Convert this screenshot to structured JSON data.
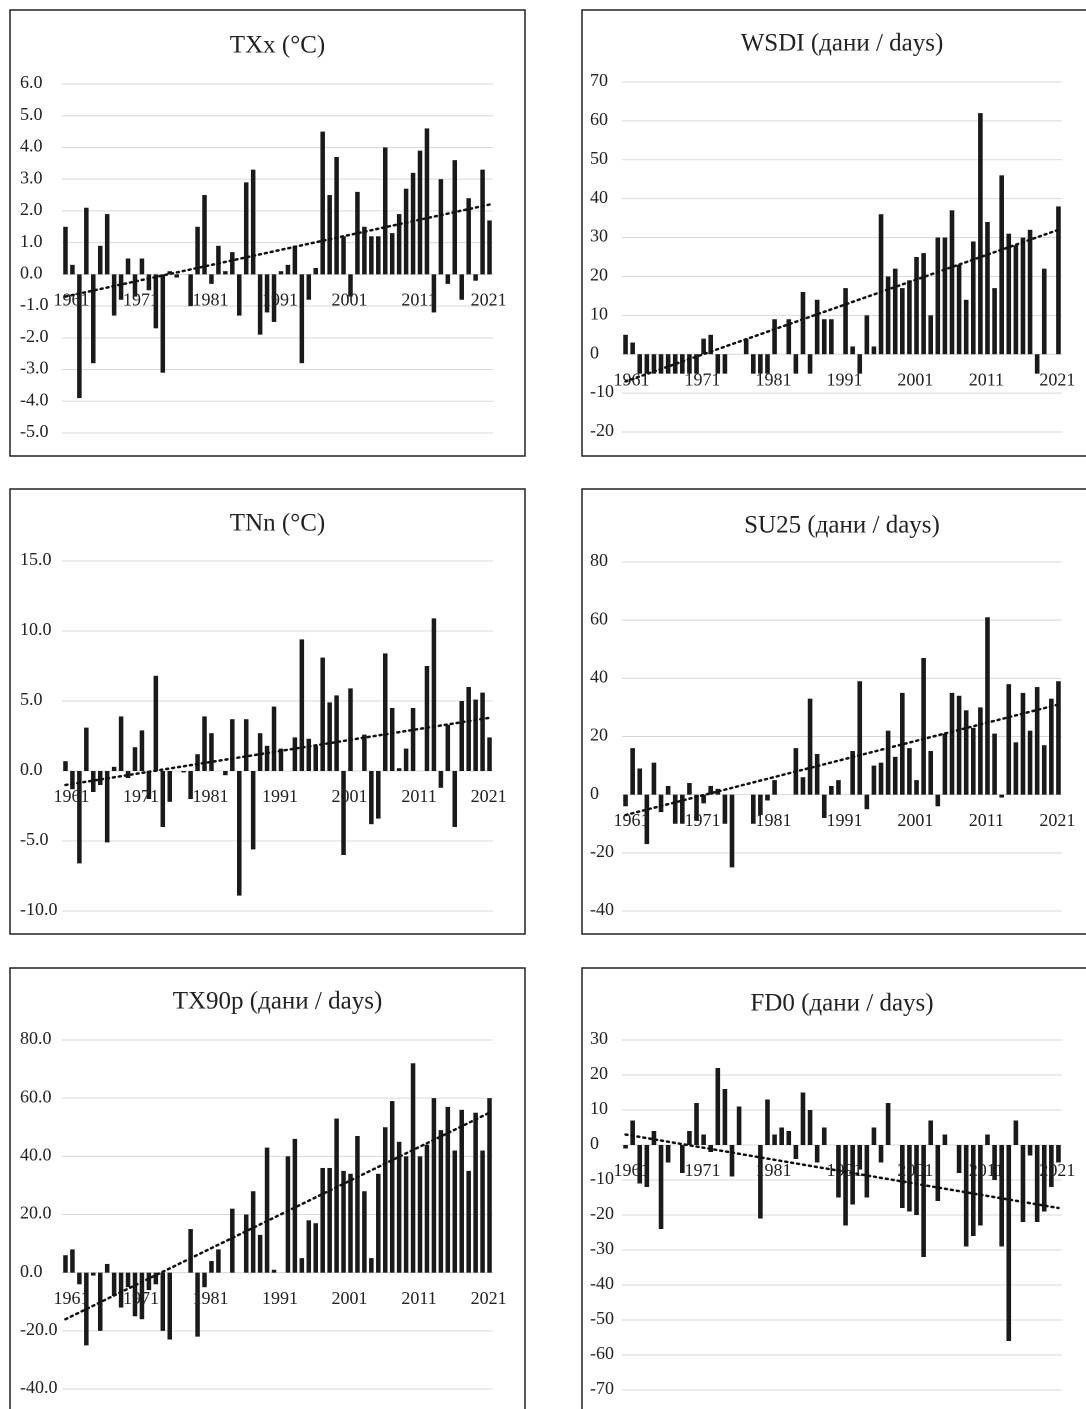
{
  "chart_data": [
    {
      "type": "bar",
      "title": "TXx (°C)",
      "color": "#1a1a1a",
      "categories": [
        "1961",
        null,
        null,
        null,
        null,
        null,
        null,
        null,
        null,
        null,
        "1971",
        null,
        null,
        null,
        null,
        null,
        null,
        null,
        null,
        null,
        "1981",
        null,
        null,
        null,
        null,
        null,
        null,
        null,
        null,
        null,
        "1991",
        null,
        null,
        null,
        null,
        null,
        null,
        null,
        null,
        null,
        "2001",
        null,
        null,
        null,
        null,
        null,
        null,
        null,
        null,
        null,
        "2011",
        null,
        null,
        null,
        null,
        null,
        null,
        null,
        null,
        null,
        "2021",
        null
      ],
      "values": [
        1.5,
        0.3,
        -3.9,
        2.1,
        -2.8,
        0.9,
        1.9,
        -1.3,
        -0.8,
        0.5,
        -0.7,
        0.5,
        -0.5,
        -1.7,
        -3.1,
        0.1,
        -0.1,
        0.0,
        -1.0,
        1.5,
        2.5,
        -0.3,
        0.9,
        0.1,
        0.7,
        -1.3,
        2.9,
        3.3,
        -1.9,
        -1.2,
        -1.5,
        0.1,
        0.3,
        0.9,
        -2.8,
        -0.8,
        0.2,
        4.5,
        2.5,
        3.7,
        1.2,
        -0.7,
        2.6,
        1.5,
        1.2,
        1.2,
        4.0,
        1.3,
        1.9,
        2.7,
        3.2,
        3.9,
        4.6,
        -1.2,
        3.0,
        -0.3,
        3.6,
        -0.8,
        2.4,
        -0.2,
        3.3,
        1.7
      ],
      "ylim": [
        -5,
        6
      ],
      "yticks": [
        {
          "value": -5,
          "label": "-5.0"
        },
        {
          "value": -4,
          "label": "-4.0"
        },
        {
          "value": -3,
          "label": "-3.0"
        },
        {
          "value": -2,
          "label": "-2.0"
        },
        {
          "value": -1,
          "label": "-1.0"
        },
        {
          "value": 0,
          "label": "0.0"
        },
        {
          "value": 1,
          "label": "1.0"
        },
        {
          "value": 2,
          "label": "2.0"
        },
        {
          "value": 3,
          "label": "3.0"
        },
        {
          "value": 4,
          "label": "4.0"
        },
        {
          "value": 5,
          "label": "5.0"
        },
        {
          "value": 6,
          "label": "6.0"
        }
      ],
      "trend": [
        -0.7,
        2.2
      ],
      "grid": true
    },
    {
      "type": "bar",
      "title": "WSDI (дани / days)",
      "color": "#1a1a1a",
      "categories": [
        "1961",
        null,
        null,
        null,
        null,
        null,
        null,
        null,
        null,
        null,
        "1971",
        null,
        null,
        null,
        null,
        null,
        null,
        null,
        null,
        null,
        "1981",
        null,
        null,
        null,
        null,
        null,
        null,
        null,
        null,
        null,
        "1991",
        null,
        null,
        null,
        null,
        null,
        null,
        null,
        null,
        null,
        "2001",
        null,
        null,
        null,
        null,
        null,
        null,
        null,
        null,
        null,
        "2011",
        null,
        null,
        null,
        null,
        null,
        null,
        null,
        null,
        null,
        "2021",
        null
      ],
      "values": [
        5,
        3,
        -5,
        -5,
        -5,
        -5,
        -5,
        -5,
        -5,
        -5,
        -5,
        4,
        5,
        -5,
        -5,
        0,
        0,
        4,
        -5,
        -5,
        -5,
        9,
        0,
        9,
        -5,
        16,
        -5,
        14,
        9,
        9,
        0,
        17,
        2,
        -5,
        10,
        2,
        36,
        20,
        22,
        17,
        19,
        25,
        26,
        10,
        30,
        30,
        37,
        23,
        14,
        29,
        62,
        34,
        17,
        46,
        31,
        28,
        30,
        32,
        -5,
        22,
        0,
        38
      ],
      "ylim": [
        -20,
        70
      ],
      "yticks": [
        -20,
        -10,
        0,
        10,
        20,
        30,
        40,
        50,
        60,
        70
      ],
      "trend": [
        -7,
        32
      ],
      "grid": true
    },
    {
      "type": "bar",
      "title": "TNn (°C)",
      "color": "#1a1a1a",
      "categories": [
        "1961",
        null,
        null,
        null,
        null,
        null,
        null,
        null,
        null,
        null,
        "1971",
        null,
        null,
        null,
        null,
        null,
        null,
        null,
        null,
        null,
        "1981",
        null,
        null,
        null,
        null,
        null,
        null,
        null,
        null,
        null,
        "1991",
        null,
        null,
        null,
        null,
        null,
        null,
        null,
        null,
        null,
        "2001",
        null,
        null,
        null,
        null,
        null,
        null,
        null,
        null,
        null,
        "2011",
        null,
        null,
        null,
        null,
        null,
        null,
        null,
        null,
        null,
        "2021",
        null
      ],
      "values": [
        0.7,
        -1.3,
        -6.6,
        3.1,
        -1.5,
        -1.0,
        -5.1,
        0.3,
        3.9,
        -0.5,
        1.7,
        2.9,
        -2.0,
        6.8,
        -4.0,
        -2.2,
        0,
        -0.1,
        -2.0,
        1.2,
        3.9,
        2.7,
        0,
        -0.3,
        3.7,
        -8.9,
        3.7,
        -5.6,
        2.7,
        1.8,
        4.6,
        1.6,
        0,
        2.4,
        9.4,
        2.3,
        1.8,
        8.1,
        4.9,
        5.4,
        -6.0,
        5.9,
        0,
        2.6,
        -3.8,
        -3.4,
        8.4,
        4.5,
        0.2,
        1.6,
        4.5,
        0,
        7.5,
        10.9,
        -1.2,
        3.3,
        -4.0,
        5.0,
        6.0,
        5.1,
        5.6,
        2.4
      ],
      "ylim": [
        -10,
        15
      ],
      "yticks": [
        {
          "value": -10,
          "label": "-10.0"
        },
        {
          "value": -5,
          "label": "-5.0"
        },
        {
          "value": 0,
          "label": "0.0"
        },
        {
          "value": 5,
          "label": "5.0"
        },
        {
          "value": 10,
          "label": "10.0"
        },
        {
          "value": 15,
          "label": "15.0"
        }
      ],
      "trend": [
        -1.0,
        3.8
      ],
      "grid": true
    },
    {
      "type": "bar",
      "title": "SU25 (дани / days)",
      "color": "#1a1a1a",
      "categories": [
        "1961",
        null,
        null,
        null,
        null,
        null,
        null,
        null,
        null,
        null,
        "1971",
        null,
        null,
        null,
        null,
        null,
        null,
        null,
        null,
        null,
        "1981",
        null,
        null,
        null,
        null,
        null,
        null,
        null,
        null,
        null,
        "1991",
        null,
        null,
        null,
        null,
        null,
        null,
        null,
        null,
        null,
        "2001",
        null,
        null,
        null,
        null,
        null,
        null,
        null,
        null,
        null,
        "2011",
        null,
        null,
        null,
        null,
        null,
        null,
        null,
        null,
        null,
        "2021",
        null
      ],
      "values": [
        -4,
        16,
        9,
        -17,
        11,
        -6,
        3,
        -10,
        -10,
        4,
        -9,
        -3,
        3,
        2,
        -10,
        -25,
        0,
        0,
        -10,
        -7,
        -2,
        5,
        0,
        0,
        16,
        6,
        33,
        14,
        -8,
        3,
        5,
        0,
        15,
        39,
        -5,
        10,
        11,
        22,
        13,
        35,
        16,
        5,
        47,
        15,
        -4,
        21,
        35,
        34,
        29,
        23,
        30,
        61,
        21,
        -1,
        38,
        18,
        35,
        22,
        37,
        17,
        33,
        39
      ],
      "ylim": [
        -40,
        80
      ],
      "yticks": [
        -40,
        -20,
        0,
        20,
        40,
        60,
        80
      ],
      "trend": [
        -7,
        31
      ],
      "grid": true
    },
    {
      "type": "bar",
      "title": "TX90p (дани / days)",
      "color": "#1a1a1a",
      "categories": [
        "1961",
        null,
        null,
        null,
        null,
        null,
        null,
        null,
        null,
        null,
        "1971",
        null,
        null,
        null,
        null,
        null,
        null,
        null,
        null,
        null,
        "1981",
        null,
        null,
        null,
        null,
        null,
        null,
        null,
        null,
        null,
        "1991",
        null,
        null,
        null,
        null,
        null,
        null,
        null,
        null,
        null,
        "2001",
        null,
        null,
        null,
        null,
        null,
        null,
        null,
        null,
        null,
        "2011",
        null,
        null,
        null,
        null,
        null,
        null,
        null,
        null,
        null,
        "2021",
        null
      ],
      "values": [
        6,
        8,
        -4,
        -25,
        -1,
        -20,
        3,
        -8,
        -12,
        -5,
        -15,
        -16,
        -6,
        -4,
        -20,
        -23,
        0,
        0,
        15,
        -22,
        -5,
        4,
        8,
        0,
        22,
        0,
        20,
        28,
        13,
        43,
        1,
        0,
        40,
        46,
        5,
        18,
        17,
        36,
        36,
        53,
        35,
        34,
        47,
        28,
        5,
        34,
        50,
        59,
        45,
        40,
        72,
        40,
        44,
        60,
        49,
        57,
        42,
        56,
        35,
        55,
        42,
        60
      ],
      "ylim": [
        -40,
        80
      ],
      "yticks": [
        {
          "value": -40,
          "label": "-40.0"
        },
        {
          "value": -20,
          "label": "-20.0"
        },
        {
          "value": 0,
          "label": "0.0"
        },
        {
          "value": 20,
          "label": "20.0"
        },
        {
          "value": 40,
          "label": "40.0"
        },
        {
          "value": 60,
          "label": "60.0"
        },
        {
          "value": 80,
          "label": "80.0"
        }
      ],
      "trend": [
        -16,
        55
      ],
      "grid": true
    },
    {
      "type": "bar",
      "title": "FD0 (дани / days)",
      "color": "#1a1a1a",
      "categories": [
        "1961",
        null,
        null,
        null,
        null,
        null,
        null,
        null,
        null,
        null,
        "1971",
        null,
        null,
        null,
        null,
        null,
        null,
        null,
        null,
        null,
        "1981",
        null,
        null,
        null,
        null,
        null,
        null,
        null,
        null,
        null,
        "1991",
        null,
        null,
        null,
        null,
        null,
        null,
        null,
        null,
        null,
        "2001",
        null,
        null,
        null,
        null,
        null,
        null,
        null,
        null,
        null,
        "2011",
        null,
        null,
        null,
        null,
        null,
        null,
        null,
        null,
        null,
        "2021",
        null
      ],
      "values": [
        -1,
        7,
        -11,
        -12,
        4,
        -24,
        -5,
        0,
        -8,
        4,
        12,
        3,
        -2,
        22,
        16,
        -9,
        11,
        0,
        0,
        -21,
        13,
        3,
        5,
        4,
        -4,
        15,
        10,
        -5,
        5,
        0,
        -15,
        -23,
        -17,
        -7,
        -15,
        5,
        -5,
        12,
        0,
        -18,
        -19,
        -20,
        -32,
        7,
        -16,
        3,
        0,
        -8,
        -29,
        -26,
        -23,
        3,
        -10,
        -29,
        -56,
        7,
        -22,
        -3,
        -22,
        -19,
        -12,
        -5
      ],
      "ylim": [
        -70,
        30
      ],
      "yticks": [
        -70,
        -60,
        -50,
        -40,
        -30,
        -20,
        -10,
        0,
        10,
        20,
        30
      ],
      "trend": [
        3,
        -18
      ],
      "grid": true
    }
  ]
}
